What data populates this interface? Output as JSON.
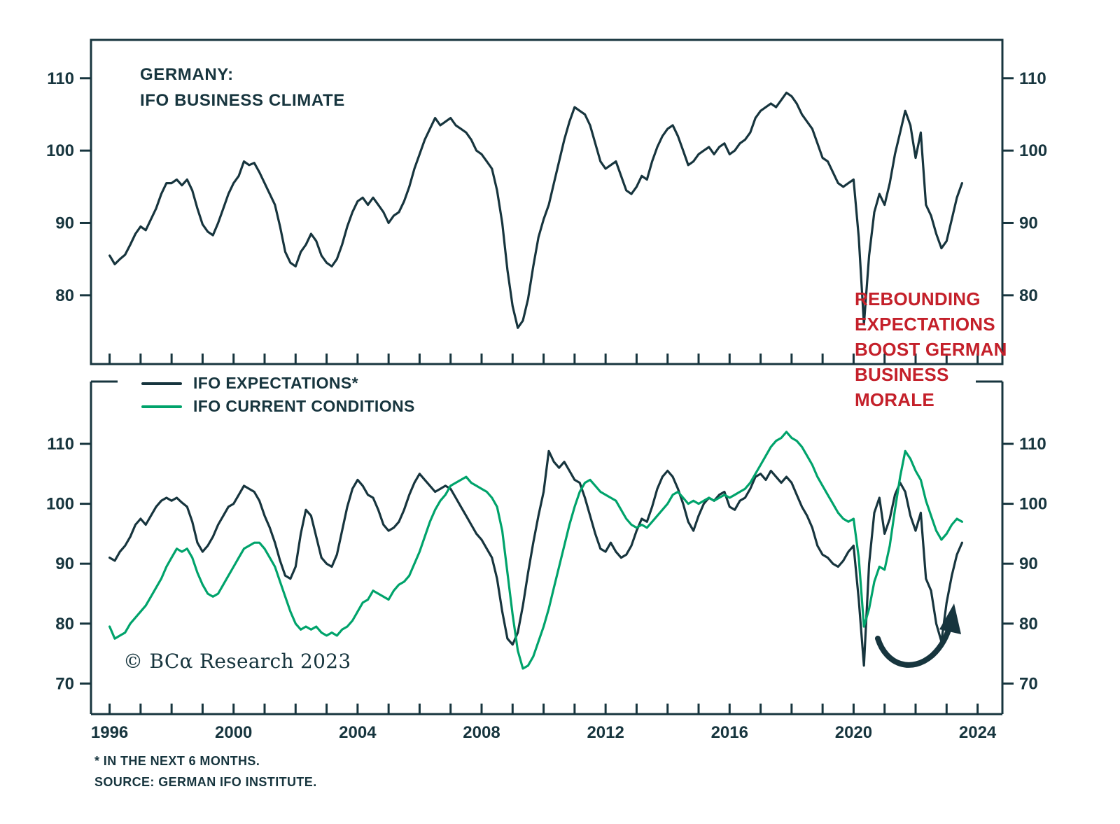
{
  "title": {
    "line1": "GERMANY:",
    "line2": "IFO BUSINESS CLIMATE"
  },
  "legend": [
    {
      "label": "IFO EXPECTATIONS*",
      "color": "#17353e"
    },
    {
      "label": "IFO CURRENT CONDITIONS",
      "color": "#00a36b"
    }
  ],
  "annotation": {
    "lines": [
      "REBOUNDING",
      "EXPECTATIONS",
      "BOOST GERMAN",
      "BUSINESS",
      "MORALE"
    ],
    "color": "#c4202a"
  },
  "copyright": "© BCα Research 2023",
  "footnotes": [
    "* IN THE NEXT 6 MONTHS.",
    "SOURCE: GERMAN IFO INSTITUTE."
  ],
  "colors": {
    "dark": "#17353e",
    "green": "#00a36b",
    "red": "#c4202a",
    "background": "#ffffff"
  },
  "chart_data": [
    {
      "type": "line",
      "panel": "top",
      "title": "GERMANY: IFO BUSINESS CLIMATE",
      "xlabel": "",
      "ylabel": "",
      "grid": false,
      "xlim": [
        1995.4,
        2024.8
      ],
      "ylim": [
        70.5,
        115.3
      ],
      "yticks": [
        80,
        90,
        100,
        110
      ],
      "xticks_minor_interval": 1,
      "xtick_labels": [
        1996,
        2000,
        2004,
        2008,
        2012,
        2016,
        2020,
        2024
      ],
      "series": [
        {
          "name": "IFO Business Climate",
          "color": "#17353e",
          "x_unit": "decimal_year",
          "x_start": 1996,
          "points_per_year": 6,
          "values": [
            85.5,
            84.3,
            85,
            85.6,
            87,
            88.5,
            89.5,
            89,
            90.5,
            92,
            94,
            95.5,
            95.5,
            96,
            95.2,
            96,
            94.5,
            92,
            89.8,
            88.8,
            88.3,
            90,
            92,
            94,
            95.5,
            96.5,
            98.5,
            98,
            98.3,
            97,
            95.5,
            94,
            92.5,
            89.5,
            86,
            84.5,
            84,
            86,
            87,
            88.5,
            87.5,
            85.5,
            84.5,
            84,
            85,
            87,
            89.5,
            91.5,
            93,
            93.5,
            92.5,
            93.5,
            92.5,
            91.5,
            90,
            91,
            91.5,
            93,
            95,
            97.5,
            99.5,
            101.5,
            103,
            104.5,
            103.5,
            104,
            104.5,
            103.5,
            103,
            102.5,
            101.5,
            100,
            99.5,
            98.5,
            97.5,
            94.5,
            90,
            83.5,
            78.5,
            75.5,
            76.5,
            79.5,
            84,
            88,
            90.5,
            92.5,
            95.5,
            98.5,
            101.5,
            104,
            106,
            105.5,
            105,
            103.5,
            101,
            98.5,
            97.5,
            98,
            98.5,
            96.5,
            94.5,
            94,
            95,
            96.5,
            96,
            98.5,
            100.5,
            102,
            103,
            103.5,
            102,
            100,
            98,
            98.5,
            99.5,
            100,
            100.5,
            99.5,
            100.5,
            101,
            99.5,
            100,
            101,
            101.5,
            102.5,
            104.5,
            105.5,
            106,
            106.5,
            106,
            107,
            108,
            107.5,
            106.5,
            105,
            104,
            103,
            101,
            99,
            98.5,
            97,
            95.5,
            95,
            95.5,
            96,
            88,
            76,
            85.5,
            91.5,
            94,
            92.5,
            95.5,
            99.5,
            102.5,
            105.5,
            103.5,
            99,
            102.5,
            92.5,
            91,
            88.5,
            86.5,
            87.5,
            90.5,
            93.5,
            95.5
          ]
        }
      ]
    },
    {
      "type": "line",
      "panel": "bottom",
      "xlabel": "",
      "ylabel": "",
      "grid": false,
      "xlim": [
        1995.4,
        2024.8
      ],
      "ylim": [
        64.9,
        120.4
      ],
      "yticks": [
        70,
        80,
        90,
        100,
        110
      ],
      "xticks_minor_interval": 1,
      "xtick_labels": [
        1996,
        2000,
        2004,
        2008,
        2012,
        2016,
        2020,
        2024
      ],
      "series": [
        {
          "name": "IFO EXPECTATIONS*",
          "color": "#17353e",
          "x_unit": "decimal_year",
          "x_start": 1996,
          "points_per_year": 6,
          "values": [
            91,
            90.5,
            92,
            93,
            94.5,
            96.5,
            97.5,
            96.5,
            98,
            99.5,
            100.5,
            101,
            100.5,
            101,
            100.2,
            99.5,
            97,
            93.5,
            92,
            93,
            94.5,
            96.5,
            98,
            99.5,
            100,
            101.5,
            103,
            102.5,
            102,
            100.5,
            98,
            96,
            93.5,
            90.5,
            88,
            87.5,
            89.5,
            95,
            99,
            98,
            94.5,
            91,
            90,
            89.5,
            91.5,
            95.5,
            99.5,
            102.5,
            104,
            103,
            101.5,
            101,
            99,
            96.5,
            95.5,
            96,
            97,
            99,
            101.5,
            103.5,
            105,
            104,
            103,
            102,
            102.5,
            103,
            102.5,
            101,
            99.5,
            98,
            96.5,
            95,
            94,
            92.5,
            91,
            87.5,
            82,
            77.5,
            76.5,
            78.5,
            83,
            88.5,
            93.5,
            98,
            102,
            108.8,
            107,
            106,
            107,
            105.5,
            104,
            103.5,
            101,
            98,
            95,
            92.5,
            92,
            93.5,
            92,
            91,
            91.5,
            93,
            95.5,
            97.5,
            97,
            99.5,
            102.5,
            104.5,
            105.5,
            104.5,
            102.5,
            100,
            97,
            95.5,
            98,
            100,
            101,
            100.5,
            101.5,
            102,
            99.5,
            99,
            100.5,
            101,
            102.5,
            104.5,
            105,
            104,
            105.5,
            104.5,
            103.5,
            104.5,
            103.5,
            101.5,
            99.5,
            98,
            96,
            93,
            91.5,
            91,
            90,
            89.5,
            90.5,
            92,
            93,
            84,
            73,
            90,
            98.5,
            101,
            95,
            97.5,
            101.5,
            103.5,
            102,
            98,
            95.5,
            98.5,
            87.5,
            85.5,
            80,
            77,
            83.5,
            88,
            91.5,
            93.5
          ]
        },
        {
          "name": "IFO CURRENT CONDITIONS",
          "color": "#00a36b",
          "x_unit": "decimal_year",
          "x_start": 1996,
          "points_per_year": 6,
          "values": [
            79.5,
            77.5,
            78,
            78.5,
            80,
            81,
            82,
            83,
            84.5,
            86,
            87.5,
            89.5,
            91,
            92.5,
            92,
            92.5,
            91,
            88.5,
            86.5,
            85,
            84.5,
            85,
            86.5,
            88,
            89.5,
            91,
            92.5,
            93,
            93.5,
            93.5,
            92.5,
            91,
            89.5,
            87,
            84.5,
            82,
            80,
            79,
            79.5,
            79,
            79.5,
            78.5,
            78,
            78.5,
            78,
            79,
            79.5,
            80.5,
            82,
            83.5,
            84,
            85.5,
            85,
            84.5,
            84,
            85.5,
            86.5,
            87,
            88,
            90,
            92,
            94.5,
            97,
            99,
            100.5,
            101.5,
            103,
            103.5,
            104,
            104.5,
            103.5,
            103,
            102.5,
            102,
            101,
            99.5,
            95.5,
            88.5,
            81.5,
            75.5,
            72.5,
            73,
            74.5,
            77,
            79.5,
            82.5,
            86,
            89.5,
            93,
            96.5,
            99.5,
            102,
            103.5,
            104,
            103,
            102,
            101.5,
            101,
            100.5,
            99,
            97.5,
            96.5,
            96,
            96.5,
            96,
            97,
            98,
            99,
            100,
            101.5,
            102,
            101,
            100,
            100.5,
            100,
            100.5,
            101,
            100.5,
            101,
            101.5,
            101,
            101.5,
            102,
            102.5,
            103.5,
            105,
            106.5,
            108,
            109.5,
            110.5,
            111,
            112,
            111,
            110.5,
            109.5,
            108,
            106.5,
            104.5,
            103,
            101.5,
            100,
            98.5,
            97.5,
            97,
            97.5,
            91,
            79.5,
            82.5,
            87,
            89.5,
            89,
            93,
            99,
            104.5,
            108.8,
            107.5,
            105.5,
            104,
            100.5,
            98,
            95.5,
            94,
            95,
            96.5,
            97.5,
            97
          ]
        }
      ]
    }
  ]
}
